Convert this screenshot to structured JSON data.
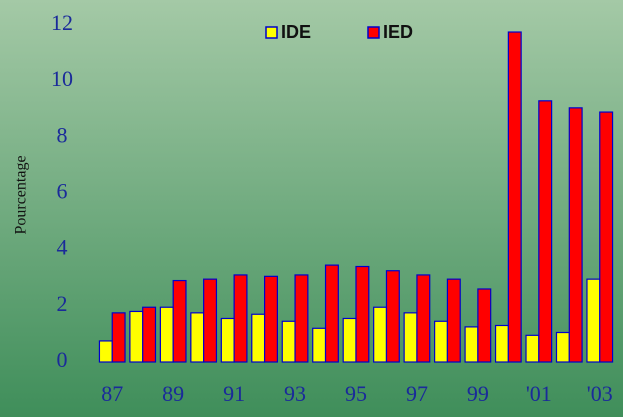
{
  "chart_data": {
    "type": "bar",
    "ylabel": "Pourcentage",
    "categories": [
      "87",
      null,
      "89",
      null,
      "91",
      null,
      "93",
      null,
      "95",
      null,
      "97",
      null,
      "99",
      null,
      "'01",
      null,
      "'03"
    ],
    "series": [
      {
        "name": "IDE",
        "color": "#ffff00",
        "values": [
          0.75,
          1.8,
          1.95,
          1.75,
          1.55,
          1.7,
          1.45,
          1.2,
          1.55,
          1.95,
          1.75,
          1.45,
          1.25,
          1.3,
          0.95,
          1.05,
          2.95
        ]
      },
      {
        "name": "IED",
        "color": "#ff0000",
        "values": [
          1.75,
          1.95,
          2.9,
          2.95,
          3.1,
          3.05,
          3.1,
          3.45,
          3.4,
          3.25,
          3.1,
          2.95,
          2.6,
          11.75,
          9.3,
          9.05,
          8.9
        ]
      }
    ],
    "ylim": [
      0,
      12
    ],
    "yticks": [
      0,
      2,
      4,
      6,
      8,
      10,
      12
    ],
    "legend": "top"
  }
}
